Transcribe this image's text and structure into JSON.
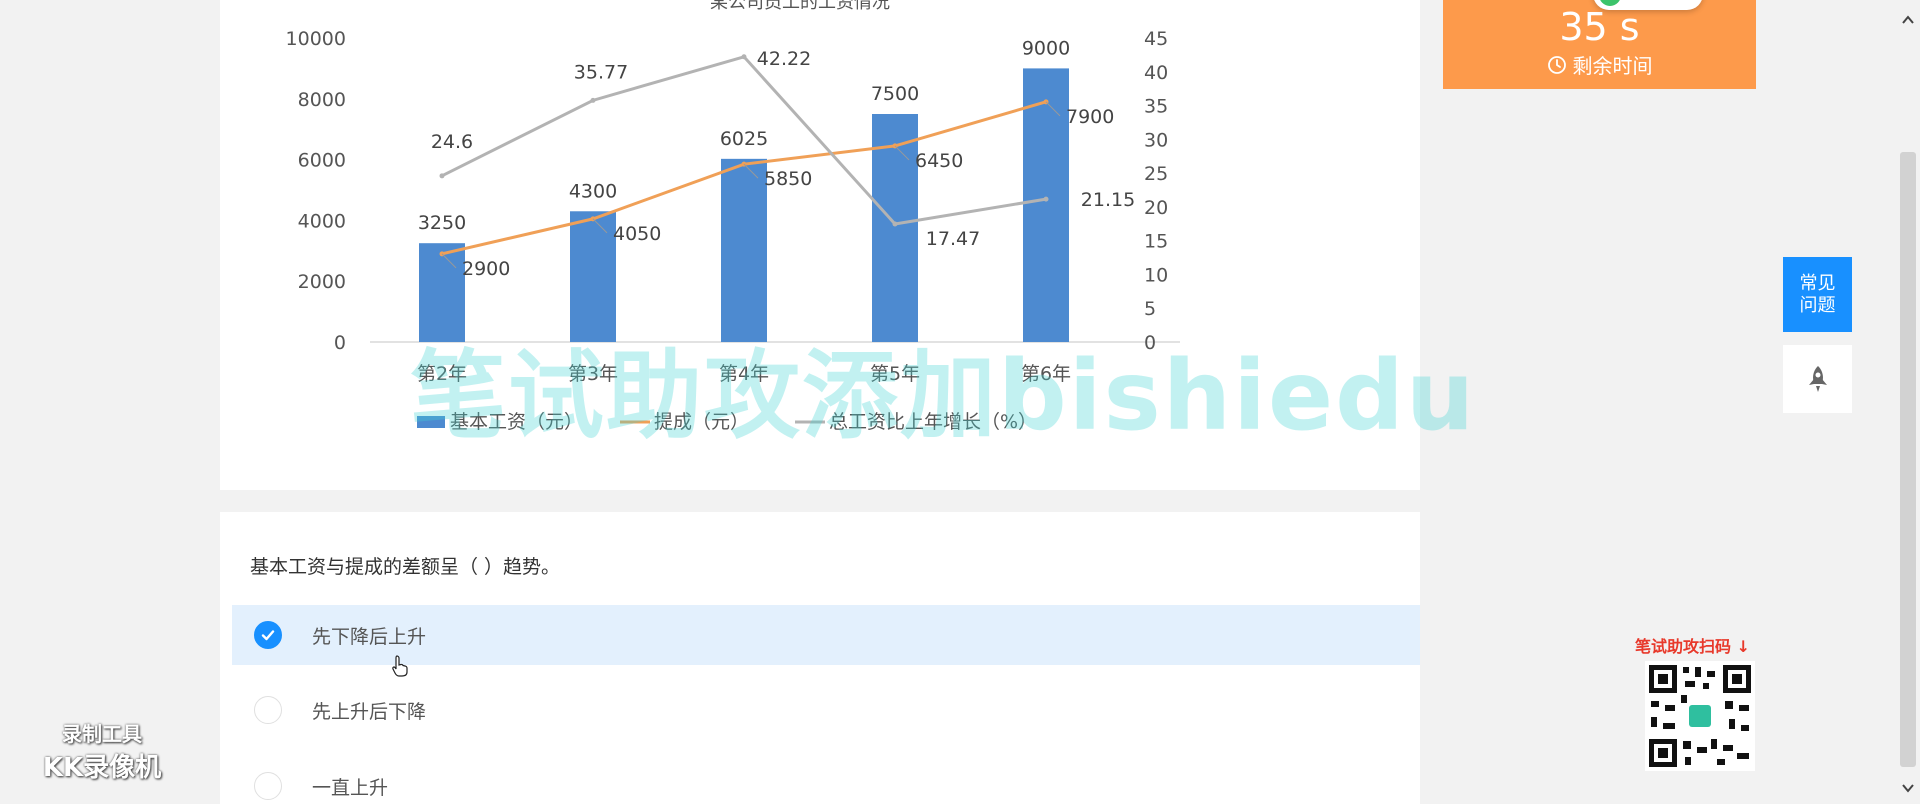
{
  "chart_data": {
    "type": "bar",
    "title": "某公司员工的工资情况",
    "categories": [
      "第2年",
      "第3年",
      "第4年",
      "第5年",
      "第6年"
    ],
    "series": [
      {
        "name": "基本工资（元）",
        "type": "bar",
        "axis": "left",
        "values": [
          3250,
          4300,
          6025,
          7500,
          9000
        ]
      },
      {
        "name": "提成（元）",
        "type": "line",
        "axis": "left",
        "values": [
          2900,
          4050,
          5850,
          6450,
          7900
        ]
      },
      {
        "name": "总工资比上年增长（%）",
        "type": "line",
        "axis": "right",
        "values": [
          24.6,
          35.77,
          42.22,
          17.47,
          21.15
        ]
      }
    ],
    "y_left": {
      "min": 0,
      "max": 10000,
      "ticks": [
        "0",
        "2000",
        "4000",
        "6000",
        "8000",
        "10000"
      ]
    },
    "y_right": {
      "min": 0,
      "max": 45,
      "ticks": [
        "0",
        "5",
        "10",
        "15",
        "20",
        "25",
        "30",
        "35",
        "40",
        "45"
      ]
    },
    "legend_position": "bottom",
    "colors": {
      "bar": "#4d8ad0",
      "commission": "#f0a057",
      "growth": "#b3b3b3"
    }
  },
  "question": {
    "text": "基本工资与提成的差额呈（   ）趋势。",
    "options": [
      {
        "label": "先下降后上升",
        "selected": true
      },
      {
        "label": "先上升后下降",
        "selected": false
      },
      {
        "label": "一直上升",
        "selected": false
      }
    ]
  },
  "timer": {
    "value": "35 s",
    "label": "剩余时间"
  },
  "side": {
    "faq_label": "常见\n问题"
  },
  "promo": {
    "watermark_text": "笔试助攻添加bishiedu",
    "qr_label": "笔试助攻扫码 ↓"
  },
  "recorder": {
    "line1": "录制工具",
    "line2": "KK录像机"
  },
  "colors": {
    "accent": "#1890ff",
    "timer_bg": "#fd9a4b",
    "selected_bg": "#e3f0fd",
    "promo_red": "#e8392b"
  }
}
